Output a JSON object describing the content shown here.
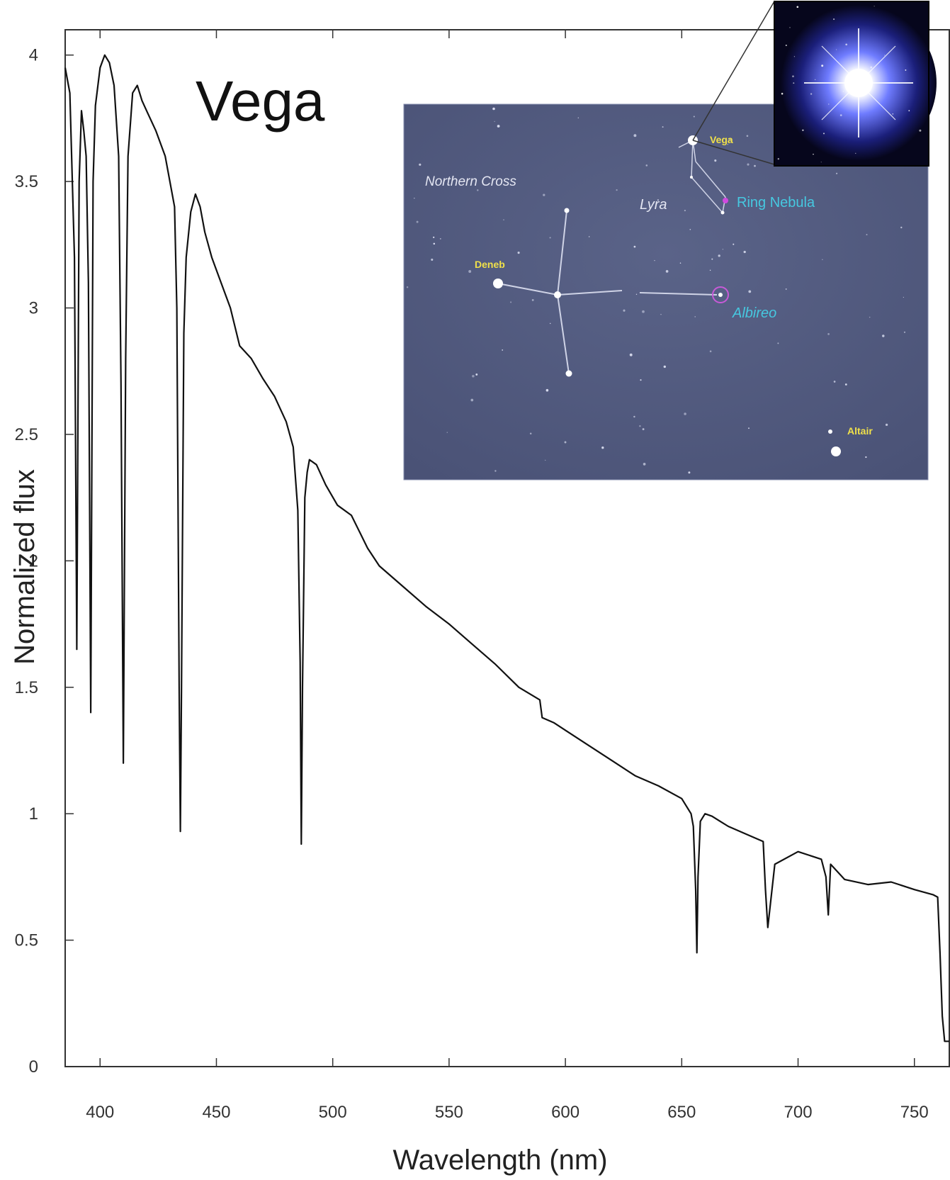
{
  "chart_data": {
    "type": "line",
    "title": "Vega",
    "xlabel": "Wavelength (nm)",
    "ylabel": "Normalized flux",
    "xlim": [
      385,
      765
    ],
    "ylim": [
      0,
      4.1
    ],
    "x_ticks": [
      400,
      450,
      500,
      550,
      600,
      650,
      700,
      750
    ],
    "x_tick_labels": [
      "400",
      "450",
      "500",
      "550",
      "600",
      "650",
      "700",
      "750"
    ],
    "y_ticks": [
      0,
      0.5,
      1,
      1.5,
      2,
      2.5,
      3,
      3.5,
      4
    ],
    "y_tick_labels": [
      "0",
      "0.5",
      "1",
      "1.5",
      "2",
      "2.5",
      "3",
      "3.5",
      "4"
    ],
    "grid": false,
    "series": [
      {
        "color": "#111111",
        "x": [
          385,
          387,
          389,
          390,
          391,
          392,
          393,
          394,
          395,
          396,
          397,
          398,
          400,
          402,
          404,
          406,
          408,
          409,
          410,
          411,
          412,
          414,
          416,
          418,
          420,
          424,
          428,
          432,
          433,
          434,
          434.5,
          435,
          436,
          437,
          439,
          441,
          443,
          445,
          448,
          452,
          456,
          460,
          465,
          470,
          475,
          480,
          483,
          485,
          486,
          486.5,
          487,
          488,
          489,
          490,
          493,
          497,
          502,
          508,
          515,
          520,
          530,
          540,
          550,
          560,
          570,
          580,
          589,
          590,
          595,
          600,
          610,
          620,
          630,
          640,
          650,
          654,
          655,
          656,
          656.5,
          657,
          658,
          660,
          663,
          670,
          680,
          685,
          686,
          687,
          690,
          700,
          710,
          712,
          713,
          714,
          720,
          730,
          740,
          750,
          758,
          760,
          761,
          762,
          763,
          765
        ],
        "y": [
          3.95,
          3.85,
          3.2,
          1.65,
          3.5,
          3.78,
          3.7,
          3.6,
          3.1,
          1.4,
          3.5,
          3.8,
          3.95,
          4.0,
          3.97,
          3.88,
          3.6,
          2.7,
          1.2,
          2.8,
          3.6,
          3.85,
          3.88,
          3.82,
          3.78,
          3.7,
          3.6,
          3.4,
          3.0,
          1.5,
          0.93,
          1.5,
          2.9,
          3.2,
          3.38,
          3.45,
          3.4,
          3.3,
          3.2,
          3.1,
          3.0,
          2.85,
          2.8,
          2.72,
          2.65,
          2.55,
          2.45,
          2.2,
          1.6,
          0.88,
          1.5,
          2.25,
          2.35,
          2.4,
          2.38,
          2.3,
          2.22,
          2.18,
          2.05,
          1.98,
          1.9,
          1.82,
          1.75,
          1.67,
          1.59,
          1.5,
          1.45,
          1.38,
          1.36,
          1.33,
          1.27,
          1.21,
          1.15,
          1.11,
          1.06,
          1.0,
          0.95,
          0.7,
          0.45,
          0.75,
          0.97,
          1.0,
          0.99,
          0.95,
          0.91,
          0.89,
          0.7,
          0.55,
          0.8,
          0.85,
          0.82,
          0.75,
          0.6,
          0.8,
          0.74,
          0.72,
          0.73,
          0.7,
          0.68,
          0.67,
          0.45,
          0.2,
          0.1,
          0.1
        ]
      }
    ],
    "annotations": {
      "inset_labels": [
        "Northern Cross",
        "Vega",
        "Lyra",
        "Ring Nebula",
        "Deneb",
        "Albireo",
        "Altair"
      ]
    }
  }
}
